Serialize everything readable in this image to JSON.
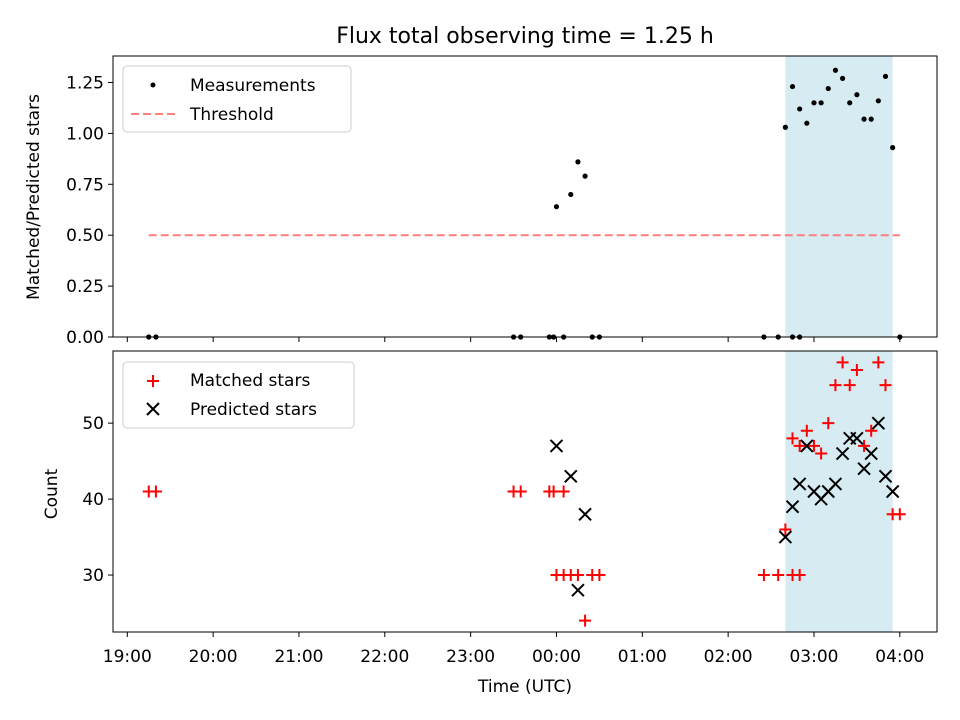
{
  "title": "Flux total observing time = 1.25 h",
  "xlabel": "Time (UTC)",
  "x_tick_labels": [
    "19:00",
    "20:00",
    "21:00",
    "22:00",
    "23:00",
    "00:00",
    "01:00",
    "02:00",
    "03:00",
    "04:00"
  ],
  "colors": {
    "threshold": "#ff7f7f",
    "shade": "#add8e6",
    "matched": "#ff0000",
    "predicted": "#000000",
    "measurement": "#000000"
  },
  "chart_data": [
    {
      "type": "scatter",
      "ylabel": "Matched/Predicted stars",
      "xlim": [
        "18:50",
        "04:26"
      ],
      "ylim": [
        0,
        1.38
      ],
      "y_ticks": [
        0.0,
        0.25,
        0.5,
        0.75,
        1.0,
        1.25
      ],
      "y_tick_labels": [
        "0.00",
        "0.25",
        "0.50",
        "0.75",
        "1.00",
        "1.25"
      ],
      "shaded_region": {
        "x": [
          "02:40",
          "03:55"
        ]
      },
      "legend": {
        "position": "top-left"
      },
      "series": [
        {
          "name": "Measurements",
          "kind": "scatter",
          "points": [
            [
              "19:15",
              0
            ],
            [
              "19:20",
              0
            ],
            [
              "23:30",
              0
            ],
            [
              "23:35",
              0
            ],
            [
              "23:55",
              0
            ],
            [
              "23:58",
              0
            ],
            [
              "00:05",
              0
            ],
            [
              "00:00",
              0.64
            ],
            [
              "00:10",
              0.7
            ],
            [
              "00:15",
              0.86
            ],
            [
              "00:20",
              0.79
            ],
            [
              "00:25",
              0
            ],
            [
              "00:30",
              0
            ],
            [
              "02:25",
              0
            ],
            [
              "02:35",
              0
            ],
            [
              "02:45",
              0
            ],
            [
              "02:50",
              0
            ],
            [
              "02:40",
              1.03
            ],
            [
              "02:45",
              1.23
            ],
            [
              "02:50",
              1.12
            ],
            [
              "02:55",
              1.05
            ],
            [
              "03:00",
              1.15
            ],
            [
              "03:05",
              1.15
            ],
            [
              "03:10",
              1.22
            ],
            [
              "03:15",
              1.31
            ],
            [
              "03:20",
              1.27
            ],
            [
              "03:25",
              1.15
            ],
            [
              "03:30",
              1.19
            ],
            [
              "03:35",
              1.07
            ],
            [
              "03:40",
              1.07
            ],
            [
              "03:45",
              1.16
            ],
            [
              "03:50",
              1.28
            ],
            [
              "03:55",
              0.93
            ],
            [
              "04:00",
              0
            ]
          ]
        },
        {
          "name": "Threshold",
          "kind": "dashed-line",
          "points": [
            [
              "19:15",
              0.5
            ],
            [
              "04:00",
              0.5
            ]
          ]
        }
      ]
    },
    {
      "type": "scatter",
      "ylabel": "Count",
      "xlim": [
        "18:50",
        "04:26"
      ],
      "ylim": [
        22.5,
        59.5
      ],
      "y_ticks": [
        30,
        40,
        50
      ],
      "y_tick_labels": [
        "30",
        "40",
        "50"
      ],
      "shaded_region": {
        "x": [
          "02:40",
          "03:55"
        ]
      },
      "legend": {
        "position": "top-left"
      },
      "series": [
        {
          "name": "Matched stars",
          "kind": "plus",
          "points": [
            [
              "19:15",
              41
            ],
            [
              "19:20",
              41
            ],
            [
              "23:30",
              41
            ],
            [
              "23:35",
              41
            ],
            [
              "23:55",
              41
            ],
            [
              "23:58",
              41
            ],
            [
              "00:05",
              41
            ],
            [
              "00:00",
              30
            ],
            [
              "00:05",
              30
            ],
            [
              "00:10",
              30
            ],
            [
              "00:15",
              30
            ],
            [
              "00:20",
              24
            ],
            [
              "00:25",
              30
            ],
            [
              "00:30",
              30
            ],
            [
              "02:25",
              30
            ],
            [
              "02:35",
              30
            ],
            [
              "02:45",
              30
            ],
            [
              "02:50",
              30
            ],
            [
              "02:40",
              36
            ],
            [
              "02:45",
              48
            ],
            [
              "02:50",
              47
            ],
            [
              "02:55",
              49
            ],
            [
              "03:00",
              47
            ],
            [
              "03:05",
              46
            ],
            [
              "03:10",
              50
            ],
            [
              "03:15",
              55
            ],
            [
              "03:20",
              58
            ],
            [
              "03:25",
              55
            ],
            [
              "03:30",
              57
            ],
            [
              "03:35",
              47
            ],
            [
              "03:40",
              49
            ],
            [
              "03:45",
              58
            ],
            [
              "03:50",
              55
            ],
            [
              "03:55",
              38
            ],
            [
              "04:00",
              38
            ]
          ]
        },
        {
          "name": "Predicted stars",
          "kind": "x",
          "points": [
            [
              "00:00",
              47
            ],
            [
              "00:10",
              43
            ],
            [
              "00:15",
              28
            ],
            [
              "00:20",
              38
            ],
            [
              "02:40",
              35
            ],
            [
              "02:45",
              39
            ],
            [
              "02:50",
              42
            ],
            [
              "02:55",
              47
            ],
            [
              "03:00",
              41
            ],
            [
              "03:05",
              40
            ],
            [
              "03:10",
              41
            ],
            [
              "03:15",
              42
            ],
            [
              "03:20",
              46
            ],
            [
              "03:25",
              48
            ],
            [
              "03:30",
              48
            ],
            [
              "03:35",
              44
            ],
            [
              "03:40",
              46
            ],
            [
              "03:45",
              50
            ],
            [
              "03:50",
              43
            ],
            [
              "03:55",
              41
            ]
          ]
        }
      ]
    }
  ]
}
